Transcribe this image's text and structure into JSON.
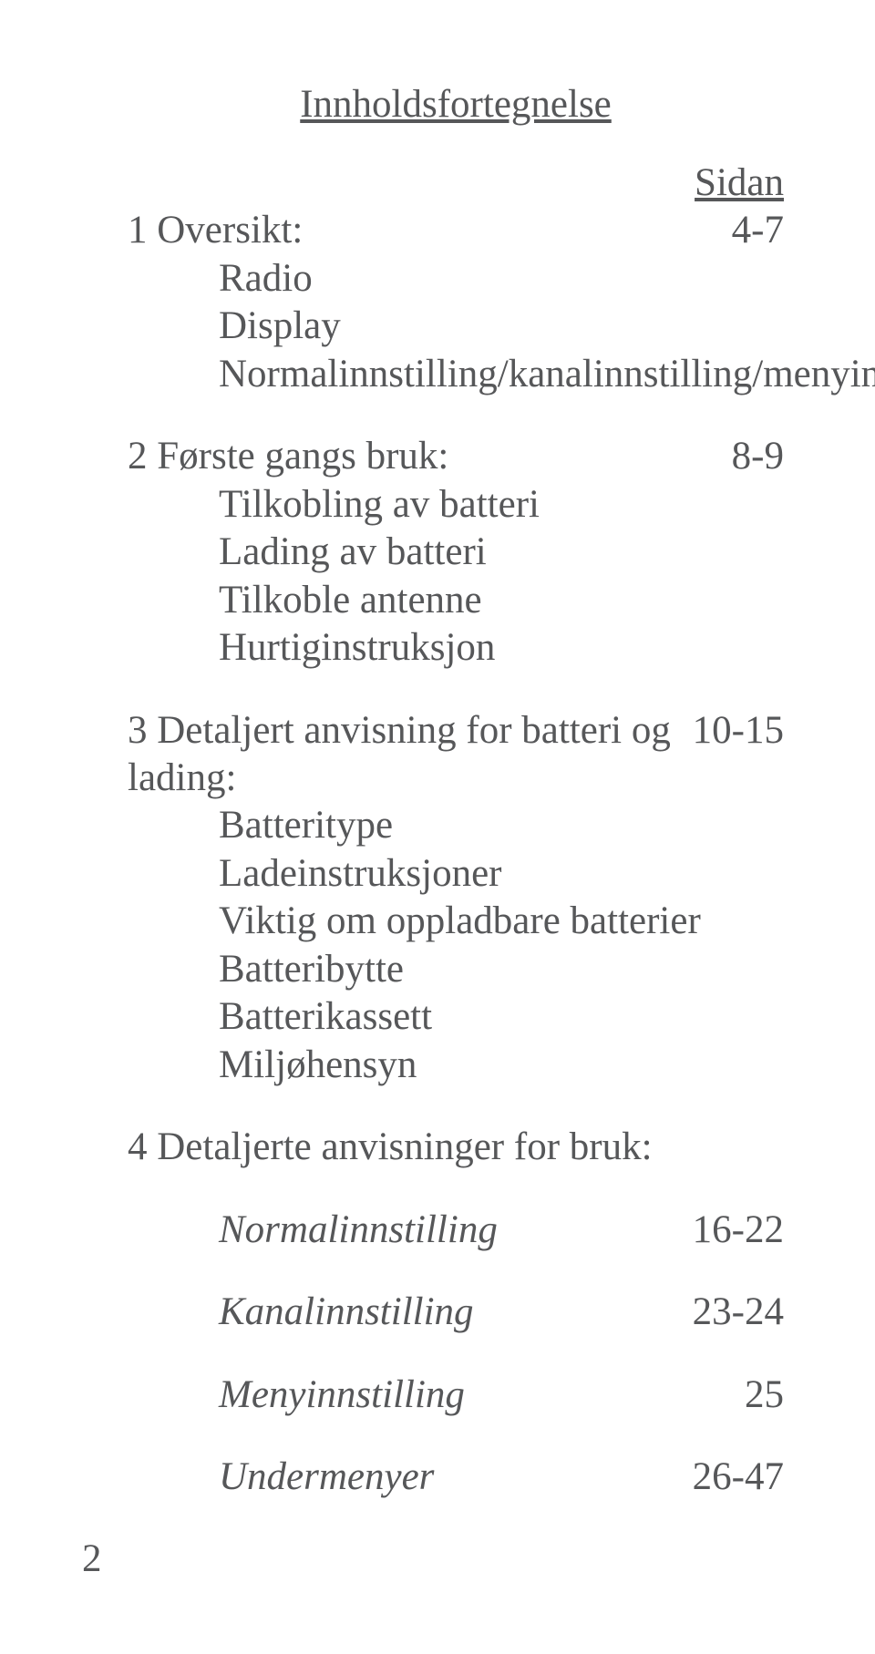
{
  "title": "Innholdsfortegnelse",
  "page_header": "Sidan",
  "sections": {
    "s1": {
      "label": "1 Oversikt:",
      "page": "4-7",
      "items": [
        "Radio",
        "Display",
        "Normalinnstilling/kanalinnstilling/menyinnstilling"
      ]
    },
    "s2": {
      "label": "2 Første gangs bruk:",
      "page": "8-9",
      "items": [
        "Tilkobling av batteri",
        "Lading av batteri",
        "Tilkoble antenne",
        "Hurtiginstruksjon"
      ]
    },
    "s3": {
      "label": "3 Detaljert anvisning for batteri og lading:",
      "page": "10-15",
      "items": [
        "Batteritype",
        "Ladeinstruksjoner",
        "Viktig om oppladbare batterier",
        "Batteribytte",
        "Batterikassett",
        "Miljøhensyn"
      ]
    },
    "s4": {
      "label": "4 Detaljerte anvisninger for bruk:",
      "page": "",
      "subs": [
        {
          "label": "Normalinnstilling",
          "page": "16-22"
        },
        {
          "label": "Kanalinnstilling",
          "page": "23-24"
        },
        {
          "label": "Menyinnstilling",
          "page": "25"
        },
        {
          "label": "Undermenyer",
          "page": "26-47"
        }
      ]
    }
  },
  "page_number": "2",
  "colors": {
    "text": "#565759",
    "background": "#ffffff"
  },
  "font": {
    "family": "Times New Roman",
    "size_pt": 32
  }
}
